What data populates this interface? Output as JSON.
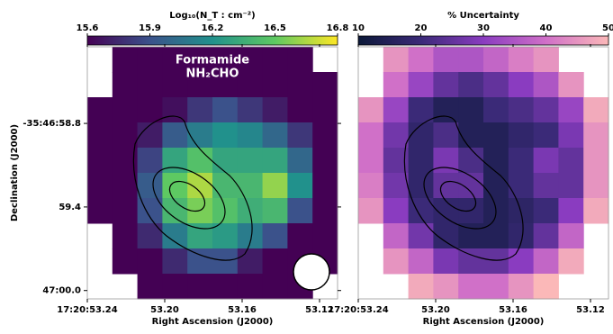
{
  "chart_data": [
    {
      "type": "heatmap",
      "colorbar_label": "Log₁₀(N_T : cm⁻²)",
      "clim": [
        15.6,
        16.8
      ],
      "cticks": [
        15.6,
        15.9,
        16.2,
        16.5,
        16.8
      ],
      "colormap": [
        "#440154",
        "#3b528b",
        "#21918c",
        "#5ec962",
        "#fde725"
      ],
      "annotations": [
        "Formamide",
        "NH₂CHO"
      ],
      "xlabel": "Right Ascension (J2000)",
      "ylabel": "Declination (J2000)",
      "xlim": [
        53.24,
        53.1107
      ],
      "xticks": [
        {
          "value": 53.24,
          "label": "17:20:53.24"
        },
        {
          "value": 53.2,
          "label": "53.20"
        },
        {
          "value": 53.16,
          "label": "53.16"
        },
        {
          "value": 53.12,
          "label": "53.12"
        }
      ],
      "ylim": [
        60.06,
        58.25
      ],
      "yticks": [
        {
          "value": 58.8,
          "label": "-35:46:58.8"
        },
        {
          "value": 59.4,
          "label": "59.4"
        },
        {
          "value": 60.0,
          "label": "47:00.0"
        }
      ],
      "z": [
        [
          null,
          15.6,
          15.6,
          15.6,
          15.6,
          15.6,
          15.6,
          15.6,
          15.6,
          null
        ],
        [
          null,
          15.6,
          15.6,
          15.6,
          15.6,
          15.6,
          15.6,
          15.6,
          15.6,
          15.6
        ],
        [
          15.6,
          15.6,
          15.6,
          15.65,
          15.8,
          15.9,
          15.8,
          15.7,
          15.6,
          15.6
        ],
        [
          15.6,
          15.6,
          15.7,
          15.95,
          16.1,
          16.2,
          16.15,
          16.0,
          15.8,
          15.6
        ],
        [
          15.6,
          15.6,
          15.85,
          16.3,
          16.45,
          16.3,
          16.3,
          16.3,
          16.0,
          15.6
        ],
        [
          15.6,
          15.6,
          15.95,
          16.5,
          16.65,
          16.4,
          16.4,
          16.6,
          16.2,
          15.6
        ],
        [
          15.6,
          15.6,
          15.9,
          16.4,
          16.55,
          16.45,
          16.35,
          16.4,
          15.9,
          15.6
        ],
        [
          null,
          15.6,
          15.75,
          16.1,
          16.3,
          16.25,
          16.1,
          15.9,
          15.6,
          15.6
        ],
        [
          null,
          15.6,
          15.6,
          15.75,
          15.9,
          15.9,
          15.7,
          15.6,
          15.6,
          15.6
        ],
        [
          null,
          null,
          15.6,
          15.6,
          15.6,
          15.6,
          15.6,
          15.6,
          15.6,
          null
        ]
      ]
    },
    {
      "type": "heatmap",
      "colorbar_label": "% Uncertainty",
      "clim": [
        10,
        50
      ],
      "cticks": [
        10,
        20,
        30,
        40,
        50
      ],
      "colormap": [
        "#0b1838",
        "#3b2a78",
        "#8a3cc0",
        "#d070c8",
        "#fbb8b8"
      ],
      "xlabel": "Right Ascension (J2000)",
      "xlim": [
        53.24,
        53.1107
      ],
      "xticks": [
        {
          "value": 53.24,
          "label": "17:20:53.24"
        },
        {
          "value": 53.2,
          "label": "53.20"
        },
        {
          "value": 53.16,
          "label": "53.16"
        },
        {
          "value": 53.12,
          "label": "53.12"
        }
      ],
      "ylim": [
        60.06,
        58.25
      ],
      "z": [
        [
          null,
          45,
          40,
          35,
          35,
          38,
          42,
          45,
          null,
          null
        ],
        [
          null,
          40,
          32,
          25,
          22,
          25,
          30,
          35,
          45,
          null
        ],
        [
          45,
          32,
          20,
          15,
          15,
          20,
          22,
          25,
          32,
          48
        ],
        [
          40,
          27,
          18,
          22,
          15,
          15,
          18,
          20,
          28,
          45
        ],
        [
          40,
          25,
          18,
          28,
          22,
          15,
          20,
          28,
          25,
          45
        ],
        [
          42,
          27,
          18,
          25,
          25,
          15,
          20,
          25,
          25,
          45
        ],
        [
          45,
          30,
          20,
          18,
          18,
          15,
          17,
          20,
          30,
          48
        ],
        [
          null,
          38,
          27,
          18,
          15,
          15,
          18,
          25,
          38,
          null
        ],
        [
          null,
          45,
          38,
          28,
          25,
          25,
          30,
          38,
          48,
          null
        ],
        [
          null,
          null,
          48,
          45,
          40,
          40,
          45,
          50,
          null,
          null
        ]
      ]
    }
  ]
}
